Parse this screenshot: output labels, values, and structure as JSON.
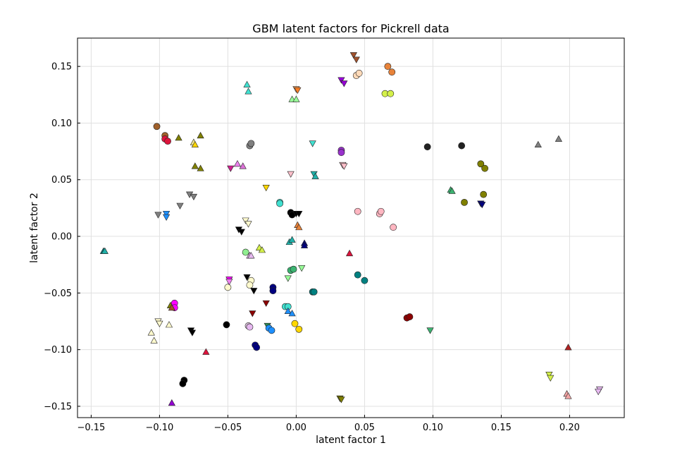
{
  "chart_data": {
    "type": "scatter",
    "title": "GBM latent factors for Pickrell data",
    "xlabel": "latent factor 1",
    "ylabel": "latent factor 2",
    "xlim": [
      -0.16,
      0.24
    ],
    "ylim": [
      -0.16,
      0.175
    ],
    "xticks": [
      -0.15,
      -0.1,
      -0.05,
      0.0,
      0.05,
      0.1,
      0.15,
      0.2
    ],
    "xtick_labels": [
      "−0.15",
      "−0.10",
      "−0.05",
      "0.00",
      "0.05",
      "0.10",
      "0.15",
      "0.20"
    ],
    "yticks": [
      -0.15,
      -0.1,
      -0.05,
      0.0,
      0.05,
      0.1,
      0.15
    ],
    "ytick_labels": [
      "−0.15",
      "−0.10",
      "−0.05",
      "0.00",
      "0.05",
      "0.10",
      "0.15"
    ],
    "grid": true,
    "legend": "none",
    "points": [
      {
        "x": 0.042,
        "y": 0.16,
        "marker": "v",
        "color": "#a0522d"
      },
      {
        "x": 0.044,
        "y": 0.156,
        "marker": "v",
        "color": "#a0522d"
      },
      {
        "x": 0.067,
        "y": 0.15,
        "marker": "o",
        "color": "#e8833a"
      },
      {
        "x": 0.07,
        "y": 0.145,
        "marker": "o",
        "color": "#e8833a"
      },
      {
        "x": 0.044,
        "y": 0.142,
        "marker": "o",
        "color": "#ffdab9"
      },
      {
        "x": 0.046,
        "y": 0.144,
        "marker": "o",
        "color": "#ffdab9"
      },
      {
        "x": 0.033,
        "y": 0.138,
        "marker": "v",
        "color": "#9400d3"
      },
      {
        "x": 0.035,
        "y": 0.135,
        "marker": "v",
        "color": "#9400d3"
      },
      {
        "x": 0.065,
        "y": 0.126,
        "marker": "o",
        "color": "#d4f04a"
      },
      {
        "x": 0.069,
        "y": 0.126,
        "marker": "o",
        "color": "#d4f04a"
      },
      {
        "x": -0.036,
        "y": 0.134,
        "marker": "^",
        "color": "#40e0d0"
      },
      {
        "x": -0.035,
        "y": 0.128,
        "marker": "^",
        "color": "#40e0d0"
      },
      {
        "x": 0.0,
        "y": 0.13,
        "marker": "v",
        "color": "#f4a460"
      },
      {
        "x": 0.001,
        "y": 0.129,
        "marker": "v",
        "color": "#ff7f24"
      },
      {
        "x": -0.003,
        "y": 0.121,
        "marker": "^",
        "color": "#98fb98"
      },
      {
        "x": 0.0,
        "y": 0.121,
        "marker": "^",
        "color": "#98fb98"
      },
      {
        "x": -0.102,
        "y": 0.097,
        "marker": "o",
        "color": "#a0602a"
      },
      {
        "x": -0.096,
        "y": 0.089,
        "marker": "o",
        "color": "#a0602a"
      },
      {
        "x": -0.096,
        "y": 0.086,
        "marker": "o",
        "color": "#dc143c"
      },
      {
        "x": -0.094,
        "y": 0.084,
        "marker": "o",
        "color": "#dc143c"
      },
      {
        "x": -0.086,
        "y": 0.087,
        "marker": "^",
        "color": "#808000"
      },
      {
        "x": -0.07,
        "y": 0.089,
        "marker": "^",
        "color": "#808000"
      },
      {
        "x": -0.075,
        "y": 0.083,
        "marker": "^",
        "color": "#f0e68c"
      },
      {
        "x": -0.074,
        "y": 0.081,
        "marker": "^",
        "color": "#ffd700"
      },
      {
        "x": -0.074,
        "y": 0.062,
        "marker": "^",
        "color": "#808000"
      },
      {
        "x": -0.07,
        "y": 0.06,
        "marker": "^",
        "color": "#808000"
      },
      {
        "x": -0.034,
        "y": 0.08,
        "marker": "o",
        "color": "#808080"
      },
      {
        "x": -0.033,
        "y": 0.082,
        "marker": "o",
        "color": "#808080"
      },
      {
        "x": 0.012,
        "y": 0.082,
        "marker": "v",
        "color": "#40e0d0"
      },
      {
        "x": 0.033,
        "y": 0.076,
        "marker": "o",
        "color": "#9932cc"
      },
      {
        "x": 0.033,
        "y": 0.074,
        "marker": "o",
        "color": "#9932cc"
      },
      {
        "x": 0.096,
        "y": 0.079,
        "marker": "o",
        "color": "#222222"
      },
      {
        "x": 0.121,
        "y": 0.08,
        "marker": "o",
        "color": "#222222"
      },
      {
        "x": 0.177,
        "y": 0.081,
        "marker": "^",
        "color": "#808080"
      },
      {
        "x": 0.192,
        "y": 0.086,
        "marker": "^",
        "color": "#808080"
      },
      {
        "x": 0.135,
        "y": 0.064,
        "marker": "o",
        "color": "#808000"
      },
      {
        "x": 0.138,
        "y": 0.06,
        "marker": "o",
        "color": "#808000"
      },
      {
        "x": 0.113,
        "y": 0.041,
        "marker": "^",
        "color": "#3cb371"
      },
      {
        "x": 0.114,
        "y": 0.04,
        "marker": "^",
        "color": "#3cb371"
      },
      {
        "x": 0.137,
        "y": 0.037,
        "marker": "o",
        "color": "#808000"
      },
      {
        "x": 0.123,
        "y": 0.03,
        "marker": "o",
        "color": "#808000"
      },
      {
        "x": 0.135,
        "y": 0.029,
        "marker": "v",
        "color": "#000080"
      },
      {
        "x": 0.136,
        "y": 0.028,
        "marker": "v",
        "color": "#000080"
      },
      {
        "x": -0.048,
        "y": 0.06,
        "marker": "v",
        "color": "#d02090"
      },
      {
        "x": -0.043,
        "y": 0.064,
        "marker": "^",
        "color": "#ee82ee"
      },
      {
        "x": -0.039,
        "y": 0.062,
        "marker": "^",
        "color": "#da70d6"
      },
      {
        "x": -0.004,
        "y": 0.055,
        "marker": "v",
        "color": "#ffc0cb"
      },
      {
        "x": 0.034,
        "y": 0.063,
        "marker": "v",
        "color": "#ffc0cb"
      },
      {
        "x": 0.035,
        "y": 0.062,
        "marker": "v",
        "color": "#ffc0cb"
      },
      {
        "x": 0.013,
        "y": 0.055,
        "marker": "v",
        "color": "#20b2aa"
      },
      {
        "x": 0.014,
        "y": 0.053,
        "marker": "^",
        "color": "#20b2aa"
      },
      {
        "x": -0.022,
        "y": 0.043,
        "marker": "v",
        "color": "#ffd700"
      },
      {
        "x": -0.078,
        "y": 0.037,
        "marker": "v",
        "color": "#808080"
      },
      {
        "x": -0.075,
        "y": 0.035,
        "marker": "v",
        "color": "#808080"
      },
      {
        "x": -0.085,
        "y": 0.027,
        "marker": "v",
        "color": "#808080"
      },
      {
        "x": -0.101,
        "y": 0.019,
        "marker": "v",
        "color": "#808080"
      },
      {
        "x": -0.095,
        "y": 0.02,
        "marker": "v",
        "color": "#1e90ff"
      },
      {
        "x": -0.095,
        "y": 0.017,
        "marker": "v",
        "color": "#1e90ff"
      },
      {
        "x": -0.012,
        "y": 0.03,
        "marker": "o",
        "color": "#40e0d0"
      },
      {
        "x": -0.012,
        "y": 0.029,
        "marker": "o",
        "color": "#40e0d0"
      },
      {
        "x": -0.004,
        "y": 0.021,
        "marker": "o",
        "color": "#000000"
      },
      {
        "x": -0.003,
        "y": 0.019,
        "marker": "o",
        "color": "#000000"
      },
      {
        "x": 0.0,
        "y": 0.02,
        "marker": "v",
        "color": "#000000"
      },
      {
        "x": 0.002,
        "y": 0.02,
        "marker": "v",
        "color": "#000000"
      },
      {
        "x": 0.045,
        "y": 0.022,
        "marker": "o",
        "color": "#ffb6c1"
      },
      {
        "x": 0.061,
        "y": 0.02,
        "marker": "o",
        "color": "#ffb6c1"
      },
      {
        "x": 0.062,
        "y": 0.022,
        "marker": "o",
        "color": "#ffb6c1"
      },
      {
        "x": 0.071,
        "y": 0.008,
        "marker": "o",
        "color": "#ffb6c1"
      },
      {
        "x": 0.001,
        "y": 0.01,
        "marker": "^",
        "color": "#e8833a"
      },
      {
        "x": 0.002,
        "y": 0.008,
        "marker": "^",
        "color": "#e8833a"
      },
      {
        "x": -0.037,
        "y": 0.014,
        "marker": "v",
        "color": "#fffacd"
      },
      {
        "x": -0.035,
        "y": 0.011,
        "marker": "v",
        "color": "#fffacd"
      },
      {
        "x": -0.042,
        "y": 0.006,
        "marker": "v",
        "color": "#000000"
      },
      {
        "x": -0.04,
        "y": 0.004,
        "marker": "v",
        "color": "#000000"
      },
      {
        "x": -0.141,
        "y": -0.013,
        "marker": "^",
        "color": "#008080"
      },
      {
        "x": -0.14,
        "y": -0.013,
        "marker": "^",
        "color": "#20b2aa"
      },
      {
        "x": -0.005,
        "y": -0.005,
        "marker": "^",
        "color": "#20b2aa"
      },
      {
        "x": -0.003,
        "y": -0.003,
        "marker": "^",
        "color": "#20b2aa"
      },
      {
        "x": 0.006,
        "y": -0.006,
        "marker": "^",
        "color": "#000080"
      },
      {
        "x": 0.006,
        "y": -0.008,
        "marker": "^",
        "color": "#000080"
      },
      {
        "x": 0.039,
        "y": -0.015,
        "marker": "^",
        "color": "#dc143c"
      },
      {
        "x": -0.037,
        "y": -0.014,
        "marker": "o",
        "color": "#90ee90"
      },
      {
        "x": -0.034,
        "y": -0.017,
        "marker": "^",
        "color": "#e6b8f0"
      },
      {
        "x": -0.033,
        "y": -0.017,
        "marker": "^",
        "color": "#e6b8f0"
      },
      {
        "x": -0.027,
        "y": -0.01,
        "marker": "^",
        "color": "#d4f04a"
      },
      {
        "x": -0.025,
        "y": -0.012,
        "marker": "^",
        "color": "#d4f04a"
      },
      {
        "x": -0.004,
        "y": -0.03,
        "marker": "o",
        "color": "#3cb371"
      },
      {
        "x": -0.002,
        "y": -0.029,
        "marker": "o",
        "color": "#3cb371"
      },
      {
        "x": 0.004,
        "y": -0.028,
        "marker": "v",
        "color": "#98fb98"
      },
      {
        "x": -0.006,
        "y": -0.037,
        "marker": "v",
        "color": "#98fb98"
      },
      {
        "x": 0.045,
        "y": -0.034,
        "marker": "o",
        "color": "#008080"
      },
      {
        "x": 0.05,
        "y": -0.039,
        "marker": "o",
        "color": "#008080"
      },
      {
        "x": -0.036,
        "y": -0.036,
        "marker": "v",
        "color": "#000000"
      },
      {
        "x": -0.033,
        "y": -0.039,
        "marker": "o",
        "color": "#fffacd"
      },
      {
        "x": -0.034,
        "y": -0.043,
        "marker": "o",
        "color": "#fffacd"
      },
      {
        "x": -0.05,
        "y": -0.045,
        "marker": "o",
        "color": "#fffacd"
      },
      {
        "x": -0.031,
        "y": -0.048,
        "marker": "v",
        "color": "#000000"
      },
      {
        "x": -0.049,
        "y": -0.038,
        "marker": "v",
        "color": "#ff00ff"
      },
      {
        "x": -0.049,
        "y": -0.04,
        "marker": "v",
        "color": "#ee82ee"
      },
      {
        "x": -0.017,
        "y": -0.045,
        "marker": "o",
        "color": "#000080"
      },
      {
        "x": -0.017,
        "y": -0.048,
        "marker": "o",
        "color": "#000080"
      },
      {
        "x": 0.012,
        "y": -0.049,
        "marker": "o",
        "color": "#008080"
      },
      {
        "x": 0.013,
        "y": -0.049,
        "marker": "o",
        "color": "#008080"
      },
      {
        "x": -0.089,
        "y": -0.059,
        "marker": "o",
        "color": "#ff00ff"
      },
      {
        "x": -0.089,
        "y": -0.063,
        "marker": "o",
        "color": "#ff00ff"
      },
      {
        "x": -0.092,
        "y": -0.061,
        "marker": "^",
        "color": "#808000"
      },
      {
        "x": -0.091,
        "y": -0.063,
        "marker": "^",
        "color": "#a0522d"
      },
      {
        "x": -0.022,
        "y": -0.059,
        "marker": "v",
        "color": "#8b0000"
      },
      {
        "x": -0.032,
        "y": -0.068,
        "marker": "v",
        "color": "#8b0000"
      },
      {
        "x": -0.008,
        "y": -0.062,
        "marker": "o",
        "color": "#40e0d0"
      },
      {
        "x": -0.006,
        "y": -0.062,
        "marker": "o",
        "color": "#40e0d0"
      },
      {
        "x": -0.006,
        "y": -0.066,
        "marker": "^",
        "color": "#1e90ff"
      },
      {
        "x": -0.003,
        "y": -0.068,
        "marker": "^",
        "color": "#1e90ff"
      },
      {
        "x": 0.081,
        "y": -0.072,
        "marker": "o",
        "color": "#8b0000"
      },
      {
        "x": 0.083,
        "y": -0.071,
        "marker": "o",
        "color": "#8b0000"
      },
      {
        "x": -0.101,
        "y": -0.075,
        "marker": "v",
        "color": "#fffacd"
      },
      {
        "x": -0.1,
        "y": -0.077,
        "marker": "v",
        "color": "#fffacd"
      },
      {
        "x": -0.093,
        "y": -0.078,
        "marker": "^",
        "color": "#fffacd"
      },
      {
        "x": -0.051,
        "y": -0.078,
        "marker": "o",
        "color": "#000000"
      },
      {
        "x": -0.035,
        "y": -0.079,
        "marker": "o",
        "color": "#d8bfd8"
      },
      {
        "x": -0.034,
        "y": -0.08,
        "marker": "o",
        "color": "#e6b8f0"
      },
      {
        "x": -0.021,
        "y": -0.079,
        "marker": "v",
        "color": "#2e8b57"
      },
      {
        "x": -0.02,
        "y": -0.081,
        "marker": "o",
        "color": "#1e90ff"
      },
      {
        "x": -0.018,
        "y": -0.083,
        "marker": "o",
        "color": "#1e90ff"
      },
      {
        "x": -0.077,
        "y": -0.083,
        "marker": "v",
        "color": "#000000"
      },
      {
        "x": -0.076,
        "y": -0.085,
        "marker": "v",
        "color": "#000000"
      },
      {
        "x": -0.001,
        "y": -0.077,
        "marker": "o",
        "color": "#ffd700"
      },
      {
        "x": 0.002,
        "y": -0.082,
        "marker": "o",
        "color": "#ffd700"
      },
      {
        "x": 0.098,
        "y": -0.083,
        "marker": "v",
        "color": "#3cb371"
      },
      {
        "x": -0.106,
        "y": -0.085,
        "marker": "^",
        "color": "#fffacd"
      },
      {
        "x": -0.104,
        "y": -0.092,
        "marker": "^",
        "color": "#fffacd"
      },
      {
        "x": -0.066,
        "y": -0.102,
        "marker": "^",
        "color": "#dc143c"
      },
      {
        "x": -0.03,
        "y": -0.096,
        "marker": "o",
        "color": "#000080"
      },
      {
        "x": -0.029,
        "y": -0.098,
        "marker": "o",
        "color": "#000080"
      },
      {
        "x": 0.199,
        "y": -0.098,
        "marker": "^",
        "color": "#b22222"
      },
      {
        "x": -0.082,
        "y": -0.127,
        "marker": "o",
        "color": "#000000"
      },
      {
        "x": -0.083,
        "y": -0.13,
        "marker": "o",
        "color": "#000000"
      },
      {
        "x": 0.185,
        "y": -0.122,
        "marker": "v",
        "color": "#d4f04a"
      },
      {
        "x": 0.186,
        "y": -0.125,
        "marker": "v",
        "color": "#d4f04a"
      },
      {
        "x": 0.198,
        "y": -0.139,
        "marker": "^",
        "color": "#f4a6a6"
      },
      {
        "x": 0.199,
        "y": -0.141,
        "marker": "^",
        "color": "#f4a6a6"
      },
      {
        "x": 0.222,
        "y": -0.135,
        "marker": "v",
        "color": "#e6b8f0"
      },
      {
        "x": 0.221,
        "y": -0.137,
        "marker": "v",
        "color": "#e6b8f0"
      },
      {
        "x": -0.091,
        "y": -0.147,
        "marker": "^",
        "color": "#9400d3"
      },
      {
        "x": 0.032,
        "y": -0.143,
        "marker": "v",
        "color": "#808000"
      },
      {
        "x": 0.033,
        "y": -0.144,
        "marker": "v",
        "color": "#808000"
      }
    ]
  }
}
